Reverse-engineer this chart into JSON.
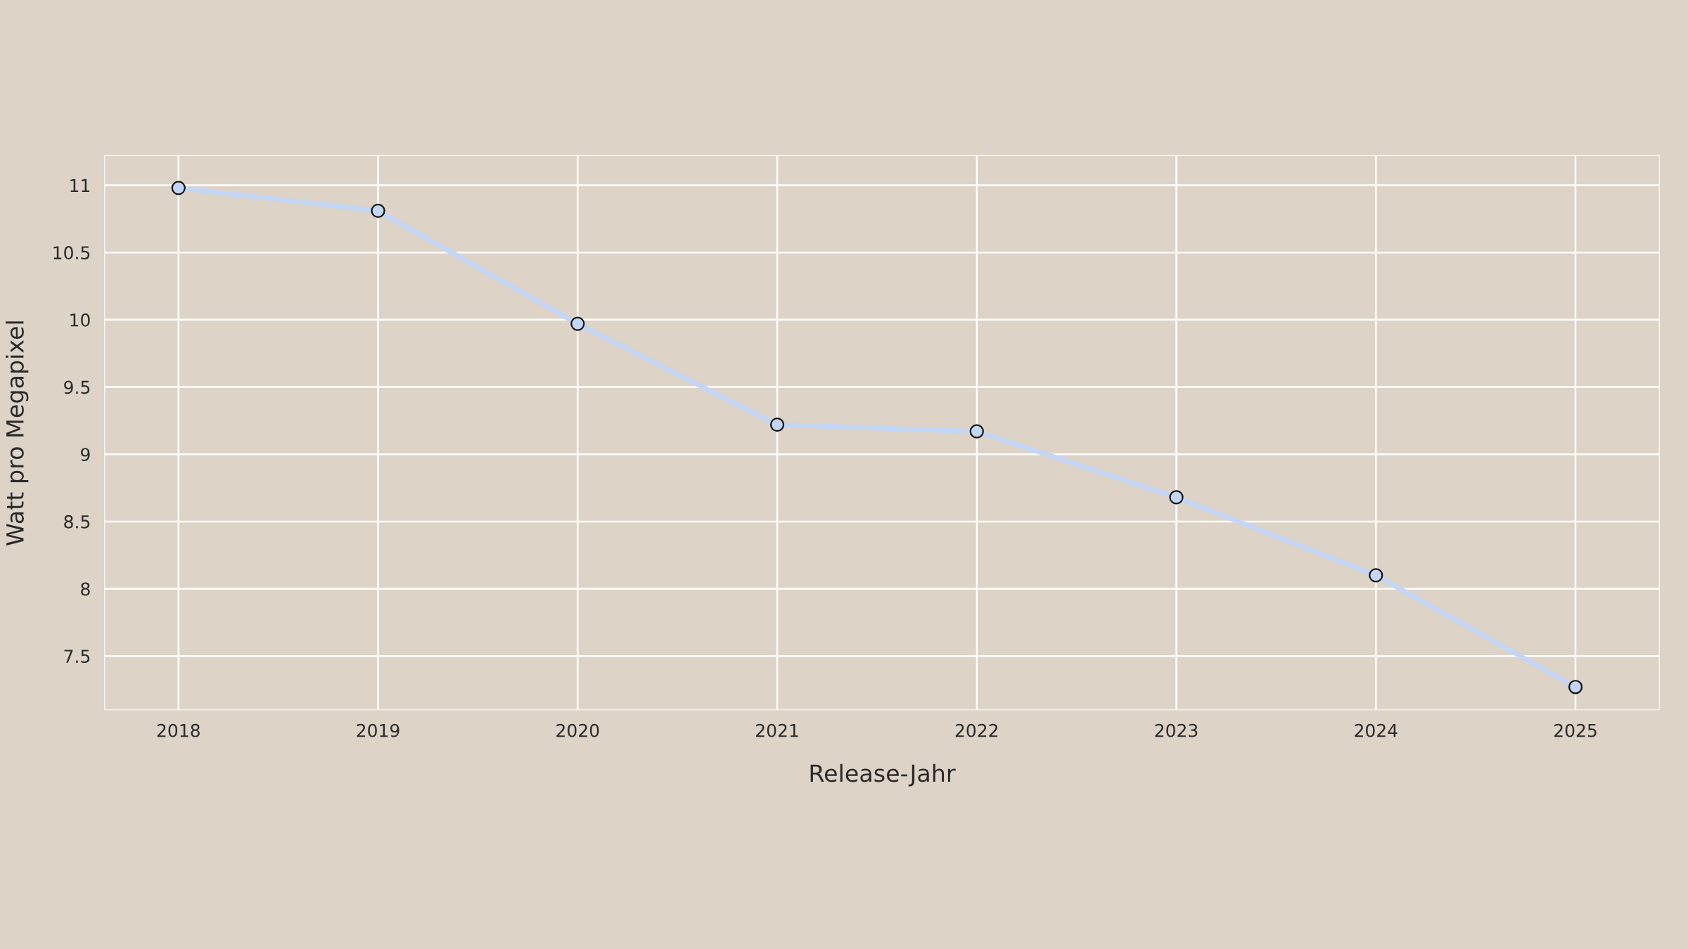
{
  "chart_data": {
    "type": "line",
    "xlabel": "Release-Jahr",
    "ylabel": "Watt pro Megapixel",
    "x": [
      2018,
      2019,
      2020,
      2021,
      2022,
      2023,
      2024,
      2025
    ],
    "series": [
      {
        "color": "#c3d6f5",
        "values": [
          10.98,
          10.81,
          9.97,
          9.22,
          9.17,
          8.68,
          8.1,
          7.27
        ]
      }
    ],
    "xlim": [
      2017.63,
      2025.42
    ],
    "xticks": [
      2018,
      2019,
      2020,
      2021,
      2022,
      2023,
      2024,
      2025
    ],
    "ylim": [
      7.1,
      11.22
    ],
    "yticks": [
      7.5,
      8,
      8.5,
      9,
      9.5,
      10,
      10.5,
      11
    ],
    "grid": true,
    "marker": "circle",
    "line_style": "solid"
  }
}
